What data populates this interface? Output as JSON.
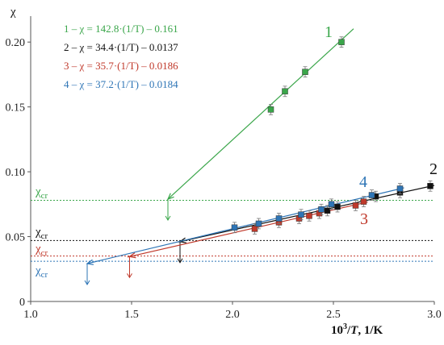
{
  "chart_data": {
    "type": "scatter",
    "ylabel": "χ",
    "xlabel_num": "10",
    "xlabel_sup": "3",
    "xlabel_slash": "/",
    "xlabel_var": "T",
    "xlabel_unit": ", 1/K",
    "xlim": [
      1.0,
      3.0
    ],
    "ylim": [
      0,
      0.22
    ],
    "x_ticks": [
      1.0,
      1.5,
      2.0,
      2.5,
      3.0
    ],
    "x_tick_labels": [
      "1.0",
      "1.5",
      "2.0",
      "2.5",
      "3.0"
    ],
    "y_ticks": [
      0,
      0.05,
      0.1,
      0.15,
      0.2
    ],
    "y_tick_labels": [
      "0",
      "0.05",
      "0.10",
      "0.15",
      "0.20"
    ],
    "grid": false,
    "legend_position": "top-left",
    "series": [
      {
        "name": "1",
        "color": "#3aa64a",
        "legend": "1 – χ = 142.8·(1/T) – 0.161",
        "slope": 142.8,
        "intercept": -0.161,
        "fit_x": [
          1.68,
          2.6
        ],
        "points": [
          {
            "x": 2.19,
            "y": 0.148,
            "err": 0.004
          },
          {
            "x": 2.26,
            "y": 0.162,
            "err": 0.004
          },
          {
            "x": 2.36,
            "y": 0.177,
            "err": 0.004
          },
          {
            "x": 2.54,
            "y": 0.2,
            "err": 0.004
          }
        ],
        "chi_cr": 0.078,
        "chi_cr_label": "χ",
        "chi_cr_sub": "cr",
        "crossing_x": 1.68
      },
      {
        "name": "2",
        "color": "#111111",
        "legend": "2 – χ = 34.4·(1/T) – 0.0137",
        "slope": 34.4,
        "intercept": -0.0137,
        "fit_x": [
          1.73,
          3.0
        ],
        "points": [
          {
            "x": 2.47,
            "y": 0.07,
            "err": 0.004
          },
          {
            "x": 2.52,
            "y": 0.073,
            "err": 0.004
          },
          {
            "x": 2.71,
            "y": 0.081,
            "err": 0.004
          },
          {
            "x": 2.83,
            "y": 0.084,
            "err": 0.004
          },
          {
            "x": 2.98,
            "y": 0.089,
            "err": 0.004
          }
        ],
        "chi_cr": 0.047,
        "chi_cr_label": "χ",
        "chi_cr_sub": "cr",
        "crossing_x": 1.74
      },
      {
        "name": "3",
        "color": "#c0392b",
        "legend": "3 – χ = 35.7·(1/T) – 0.0186",
        "slope": 35.7,
        "intercept": -0.0186,
        "fit_x": [
          1.48,
          2.67
        ],
        "points": [
          {
            "x": 2.11,
            "y": 0.056,
            "err": 0.004
          },
          {
            "x": 2.23,
            "y": 0.061,
            "err": 0.004
          },
          {
            "x": 2.33,
            "y": 0.064,
            "err": 0.004
          },
          {
            "x": 2.38,
            "y": 0.066,
            "err": 0.004
          },
          {
            "x": 2.43,
            "y": 0.068,
            "err": 0.004
          },
          {
            "x": 2.61,
            "y": 0.074,
            "err": 0.004
          },
          {
            "x": 2.65,
            "y": 0.077,
            "err": 0.004
          }
        ],
        "chi_cr": 0.035,
        "chi_cr_label": "χ",
        "chi_cr_sub": "cr",
        "crossing_x": 1.49
      },
      {
        "name": "4",
        "color": "#2e75b6",
        "legend": "4 – χ = 37.2·(1/T) – 0.0184",
        "slope": 37.2,
        "intercept": -0.0184,
        "fit_x": [
          1.28,
          2.85
        ],
        "points": [
          {
            "x": 2.01,
            "y": 0.057,
            "err": 0.004
          },
          {
            "x": 2.13,
            "y": 0.06,
            "err": 0.004
          },
          {
            "x": 2.23,
            "y": 0.064,
            "err": 0.004
          },
          {
            "x": 2.34,
            "y": 0.067,
            "err": 0.004
          },
          {
            "x": 2.44,
            "y": 0.071,
            "err": 0.004
          },
          {
            "x": 2.49,
            "y": 0.075,
            "err": 0.004
          },
          {
            "x": 2.69,
            "y": 0.082,
            "err": 0.004
          },
          {
            "x": 2.83,
            "y": 0.087,
            "err": 0.004
          }
        ],
        "chi_cr": 0.031,
        "chi_cr_label": "χ",
        "chi_cr_sub": "cr",
        "crossing_x": 1.28
      }
    ]
  }
}
